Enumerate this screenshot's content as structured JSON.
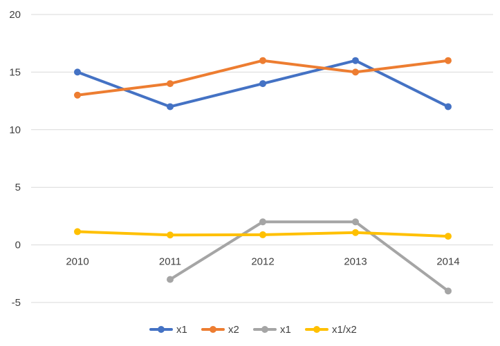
{
  "chart_data": {
    "type": "line",
    "title": "",
    "xlabel": "",
    "ylabel": "",
    "categories": [
      "2010",
      "2011",
      "2012",
      "2013",
      "2014"
    ],
    "ylim": [
      -5,
      20
    ],
    "yticks": [
      -5,
      0,
      5,
      10,
      15,
      20
    ],
    "grid": true,
    "legend_position": "bottom",
    "series": [
      {
        "name": "x1",
        "color": "#4472C4",
        "values": [
          15,
          12,
          14,
          16,
          12
        ]
      },
      {
        "name": "x2",
        "color": "#ED7D31",
        "values": [
          13,
          14,
          16,
          15,
          16
        ]
      },
      {
        "name": "x1",
        "color": "#A5A5A5",
        "values": [
          null,
          -3,
          2,
          2,
          -4
        ]
      },
      {
        "name": "x1/x2",
        "color": "#FFC000",
        "values": [
          1.15,
          0.86,
          0.88,
          1.07,
          0.75
        ]
      }
    ]
  }
}
